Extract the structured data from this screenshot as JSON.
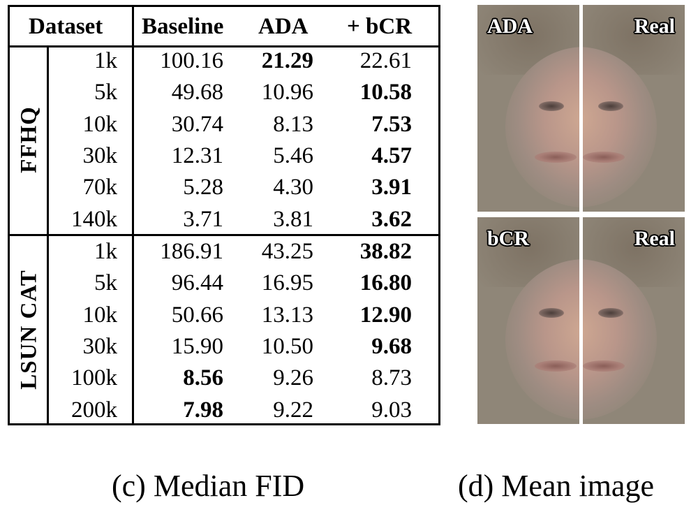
{
  "table": {
    "headers": {
      "dataset": "Dataset",
      "baseline": "Baseline",
      "ada": "ADA",
      "bcr": "+ bCR"
    },
    "groups": [
      {
        "name": "FFHQ",
        "rows": [
          {
            "size": "1k",
            "baseline": "100.16",
            "ada": "21.29",
            "bcr": "22.61",
            "bold": "ada"
          },
          {
            "size": "5k",
            "baseline": "49.68",
            "ada": "10.96",
            "bcr": "10.58",
            "bold": "bcr"
          },
          {
            "size": "10k",
            "baseline": "30.74",
            "ada": "8.13",
            "bcr": "7.53",
            "bold": "bcr"
          },
          {
            "size": "30k",
            "baseline": "12.31",
            "ada": "5.46",
            "bcr": "4.57",
            "bold": "bcr"
          },
          {
            "size": "70k",
            "baseline": "5.28",
            "ada": "4.30",
            "bcr": "3.91",
            "bold": "bcr"
          },
          {
            "size": "140k",
            "baseline": "3.71",
            "ada": "3.81",
            "bcr": "3.62",
            "bold": "bcr"
          }
        ]
      },
      {
        "name": "LSUN CAT",
        "rows": [
          {
            "size": "1k",
            "baseline": "186.91",
            "ada": "43.25",
            "bcr": "38.82",
            "bold": "bcr"
          },
          {
            "size": "5k",
            "baseline": "96.44",
            "ada": "16.95",
            "bcr": "16.80",
            "bold": "bcr"
          },
          {
            "size": "10k",
            "baseline": "50.66",
            "ada": "13.13",
            "bcr": "12.90",
            "bold": "bcr"
          },
          {
            "size": "30k",
            "baseline": "15.90",
            "ada": "10.50",
            "bcr": "9.68",
            "bold": "bcr"
          },
          {
            "size": "100k",
            "baseline": "8.56",
            "ada": "9.26",
            "bcr": "8.73",
            "bold": "baseline"
          },
          {
            "size": "200k",
            "baseline": "7.98",
            "ada": "9.22",
            "bcr": "9.03",
            "bold": "baseline"
          }
        ]
      }
    ]
  },
  "images": {
    "top_left_label": "ADA",
    "top_right_label": "Real",
    "bottom_left_label": "bCR",
    "bottom_right_label": "Real"
  },
  "captions": {
    "left": "(c) Median FID",
    "right": "(d) Mean image"
  }
}
